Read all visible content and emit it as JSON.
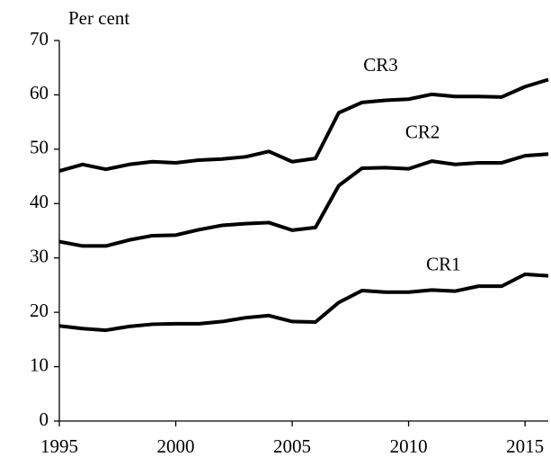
{
  "chart_data": {
    "type": "line",
    "y_label": "Per cent",
    "x": [
      1995,
      1996,
      1997,
      1998,
      1999,
      2000,
      2001,
      2002,
      2003,
      2004,
      2005,
      2006,
      2007,
      2008,
      2009,
      2010,
      2011,
      2012,
      2013,
      2014,
      2015,
      2016
    ],
    "series": [
      {
        "name": "CR3",
        "color": "#000000",
        "values": [
          46,
          47.2,
          46.3,
          47.2,
          47.7,
          47.5,
          48,
          48.2,
          48.6,
          49.6,
          47.7,
          48.3,
          56.7,
          58.6,
          59,
          59.2,
          60.1,
          59.7,
          59.7,
          59.6,
          61.5,
          62.8
        ]
      },
      {
        "name": "CR2",
        "color": "#000000",
        "values": [
          33,
          32.2,
          32.2,
          33.3,
          34.1,
          34.2,
          35.2,
          36,
          36.3,
          36.5,
          35.1,
          35.6,
          43.3,
          46.5,
          46.6,
          46.4,
          47.8,
          47.2,
          47.5,
          47.5,
          48.8,
          49.1
        ]
      },
      {
        "name": "CR1",
        "color": "#000000",
        "values": [
          17.5,
          17,
          16.7,
          17.4,
          17.8,
          17.9,
          17.9,
          18.3,
          19,
          19.4,
          18.3,
          18.2,
          21.8,
          24,
          23.7,
          23.7,
          24.1,
          23.9,
          24.8,
          24.8,
          27,
          26.7
        ]
      }
    ],
    "xlim": [
      1995,
      2016
    ],
    "xticks": [
      1995,
      2000,
      2005,
      2010,
      2015
    ],
    "ylim": [
      0,
      70
    ],
    "yticks": [
      0,
      10,
      20,
      30,
      40,
      50,
      60,
      70
    ],
    "grid": false
  }
}
